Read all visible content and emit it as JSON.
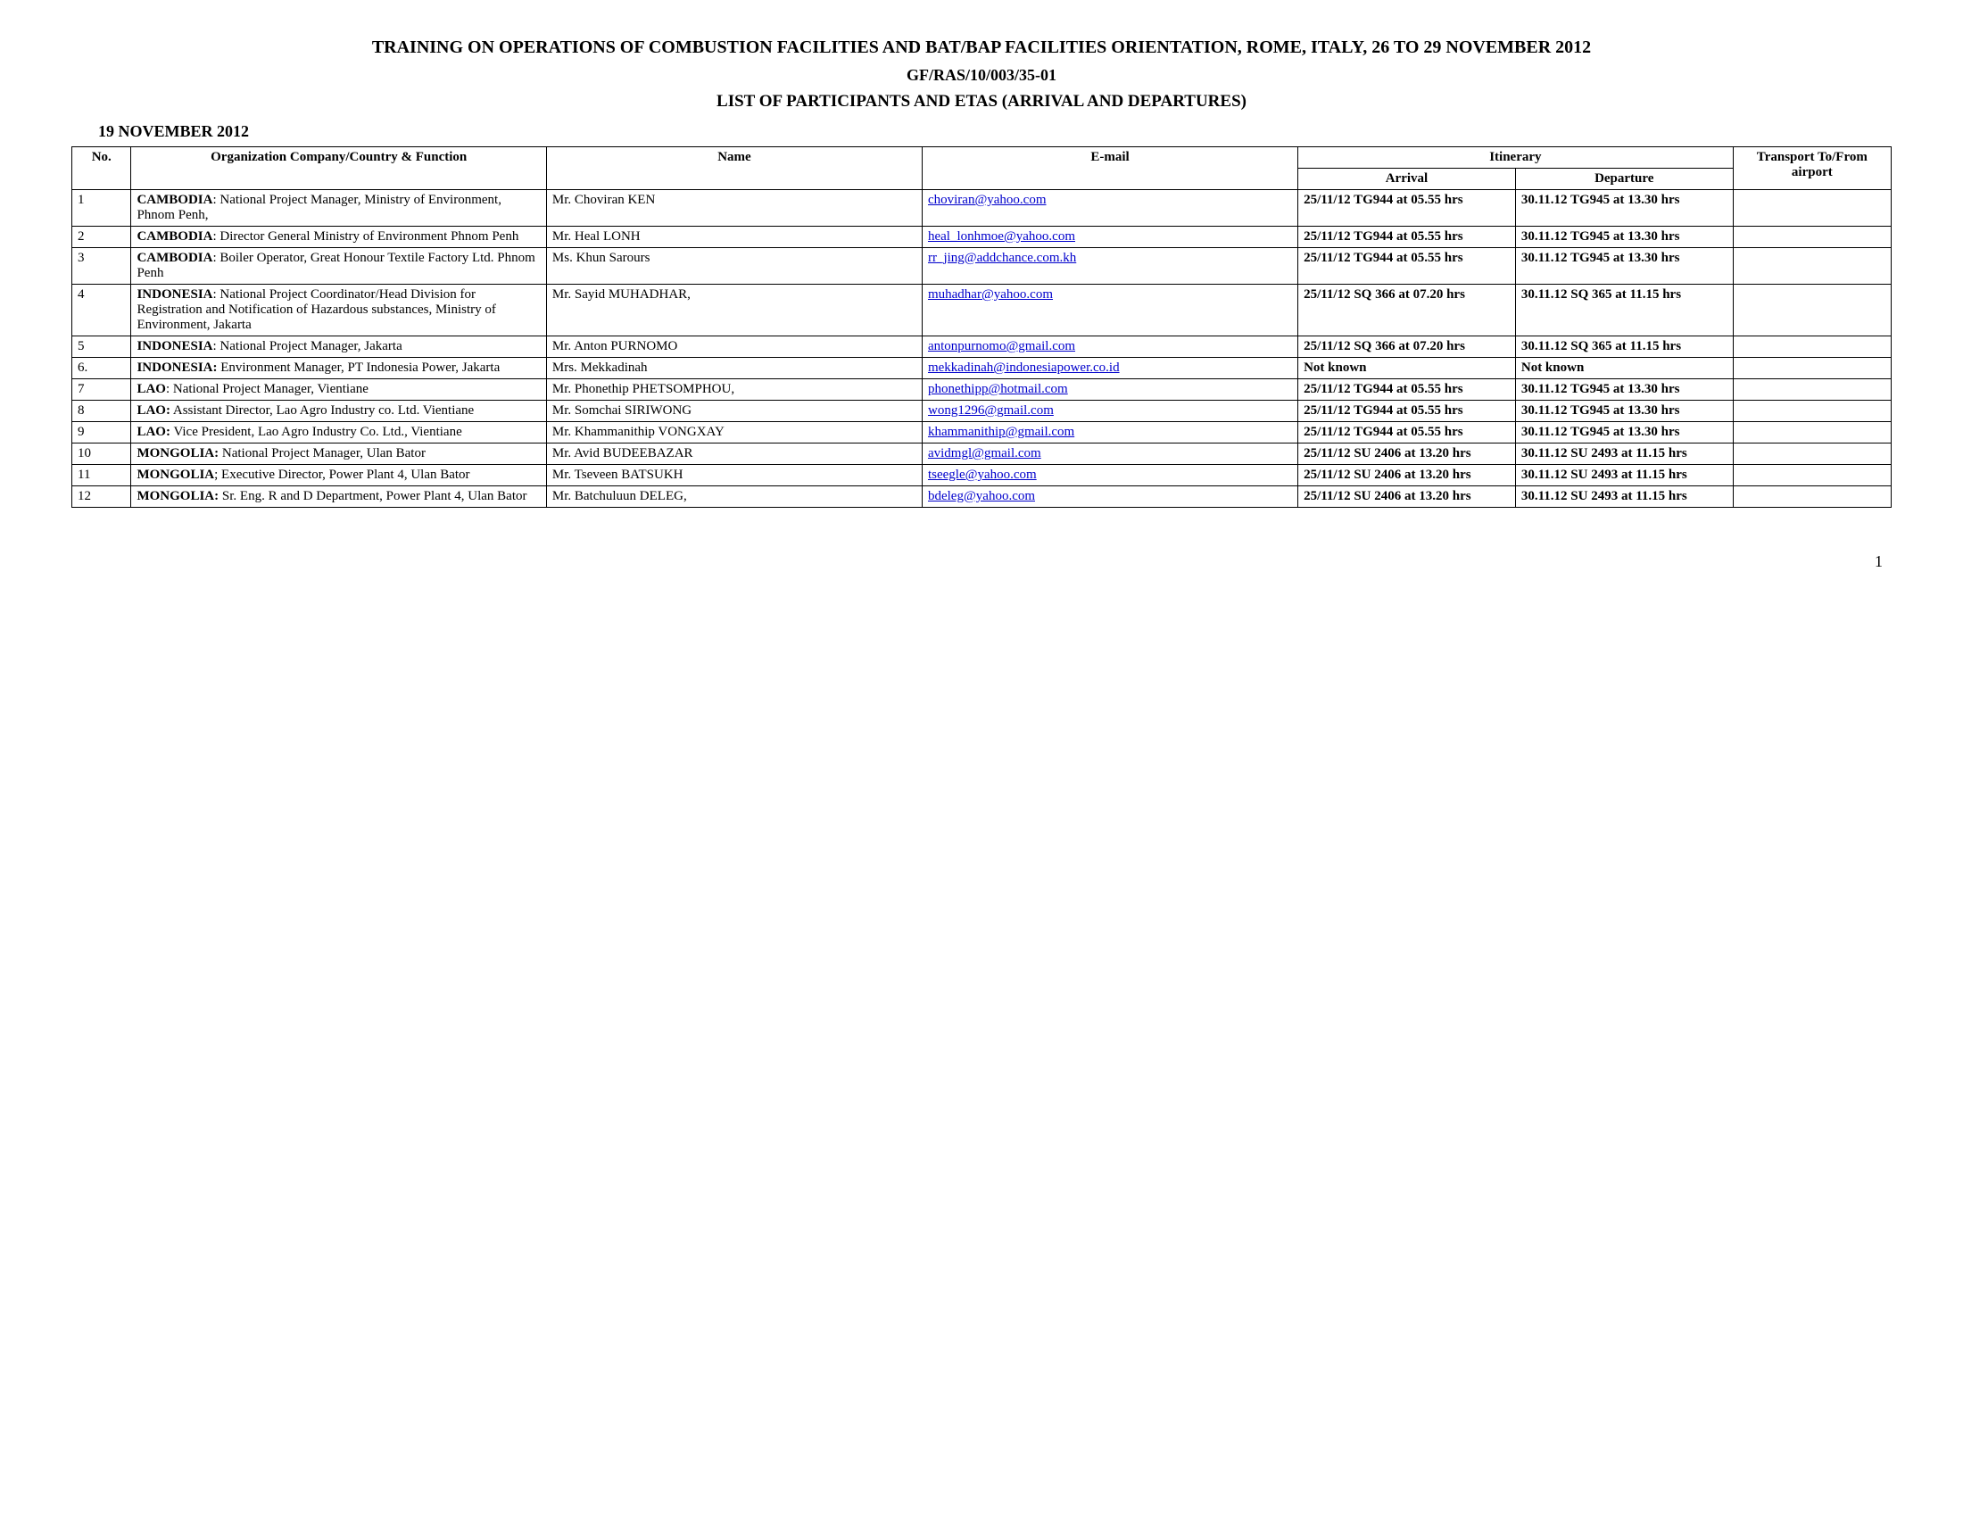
{
  "header": {
    "title": "TRAINING ON OPERATIONS OF COMBUSTION FACILITIES AND BAT/BAP FACILITIES ORIENTATION, ROME, ITALY, 26 TO 29 NOVEMBER 2012",
    "reference": "GF/RAS/10/003/35-01",
    "section": "LIST OF PARTICIPANTS AND ETAS (ARRIVAL AND DEPARTURES)",
    "date": "19 NOVEMBER 2012"
  },
  "table": {
    "columns": {
      "no": "No.",
      "org": "Organization Company/Country & Function",
      "name": "Name",
      "email": "E-mail",
      "itinerary": "Itinerary",
      "arrival": "Arrival",
      "departure": "Departure",
      "transport": "Transport To/From airport"
    },
    "rows": [
      {
        "no": "1",
        "country": "CAMBODIA",
        "org_rest": ": National Project Manager, Ministry of Environment, Phnom Penh,",
        "name": "Mr. Choviran KEN",
        "email": "choviran@yahoo.com",
        "arrival": "25/11/12 TG944 at 05.55 hrs",
        "departure": "30.11.12 TG945 at 13.30 hrs",
        "transport": ""
      },
      {
        "no": "2",
        "country": "CAMBODIA",
        "org_rest": ": Director General Ministry of Environment Phnom Penh",
        "name": "Mr. Heal LONH",
        "email": "heal_lonhmoe@yahoo.com",
        "arrival": "25/11/12 TG944 at 05.55 hrs",
        "departure": "30.11.12 TG945 at 13.30 hrs",
        "transport": ""
      },
      {
        "no": "3",
        "country": "CAMBODIA",
        "org_rest": ": Boiler Operator, Great Honour Textile Factory Ltd. Phnom Penh",
        "name": "Ms. Khun Sarours",
        "email": "rr_jing@addchance.com.kh",
        "arrival": "25/11/12 TG944 at 05.55 hrs",
        "departure": "30.11.12 TG945 at 13.30 hrs",
        "transport": ""
      },
      {
        "no": "4",
        "country": "INDONESIA",
        "org_rest": ":  National Project Coordinator/Head Division for Registration and Notification of Hazardous substances, Ministry of Environment, Jakarta",
        "name": "Mr. Sayid MUHADHAR,",
        "email": "muhadhar@yahoo.com",
        "arrival": "25/11/12 SQ 366 at 07.20 hrs",
        "departure": "30.11.12 SQ 365 at 11.15 hrs",
        "transport": ""
      },
      {
        "no": "5",
        "country": "INDONESIA",
        "org_rest": ": National Project Manager, Jakarta",
        "name": "Mr. Anton PURNOMO",
        "email": "antonpurnomo@gmail.com",
        "arrival": "25/11/12 SQ 366 at 07.20 hrs",
        "departure": "30.11.12 SQ 365 at 11.15 hrs",
        "transport": ""
      },
      {
        "no": "6.",
        "country": "INDONESIA:",
        "org_rest": " Environment Manager, PT Indonesia Power, Jakarta",
        "name": "Mrs. Mekkadinah",
        "email": "mekkadinah@indonesiapower.co.id",
        "arrival": "Not known",
        "departure": "Not known",
        "transport": ""
      },
      {
        "no": "7",
        "country": "LAO",
        "org_rest": ": National Project Manager, Vientiane",
        "name": "Mr. Phonethip PHETSOMPHOU,",
        "email": "phonethipp@hotmail.com",
        "arrival": "25/11/12 TG944 at 05.55 hrs",
        "departure": "30.11.12 TG945 at 13.30 hrs",
        "transport": ""
      },
      {
        "no": "8",
        "country": "LAO:",
        "org_rest": " Assistant Director, Lao Agro Industry co. Ltd. Vientiane",
        "name": "Mr. Somchai SIRIWONG",
        "email": "wong1296@gmail.com",
        "arrival": "25/11/12 TG944 at 05.55 hrs",
        "departure": "30.11.12 TG945 at 13.30 hrs",
        "transport": ""
      },
      {
        "no": "9",
        "country": "LAO:",
        "org_rest": " Vice President, Lao Agro Industry Co. Ltd., Vientiane",
        "name": "Mr. Khammanithip VONGXAY",
        "email": "khammanithip@gmail.com",
        "arrival": "25/11/12 TG944 at 05.55 hrs",
        "departure": "30.11.12 TG945 at 13.30 hrs",
        "transport": ""
      },
      {
        "no": "10",
        "country": "MONGOLIA:",
        "org_rest": " National Project Manager, Ulan Bator",
        "name": "Mr. Avid BUDEEBAZAR",
        "email": "avidmgl@gmail.com",
        "arrival": "25/11/12 SU 2406 at 13.20 hrs",
        "departure": "30.11.12 SU 2493 at 11.15 hrs",
        "transport": ""
      },
      {
        "no": "11",
        "country": "MONGOLIA",
        "org_rest": "; Executive Director, Power Plant 4, Ulan Bator",
        "name": "Mr. Tseveen BATSUKH",
        "email": "tseegle@yahoo.com",
        "arrival": "25/11/12 SU 2406 at 13.20 hrs",
        "departure": "30.11.12 SU 2493 at 11.15 hrs",
        "transport": ""
      },
      {
        "no": "12",
        "country": "MONGOLIA:",
        "org_rest": " Sr. Eng. R and D Department, Power Plant 4, Ulan Bator",
        "name": "Mr. Batchuluun DELEG,",
        "email": "bdeleg@yahoo.com",
        "arrival": "25/11/12 SU 2406 at 13.20 hrs",
        "departure": "30.11.12 SU 2493 at 11.15 hrs",
        "transport": ""
      }
    ]
  },
  "page_number": "1"
}
